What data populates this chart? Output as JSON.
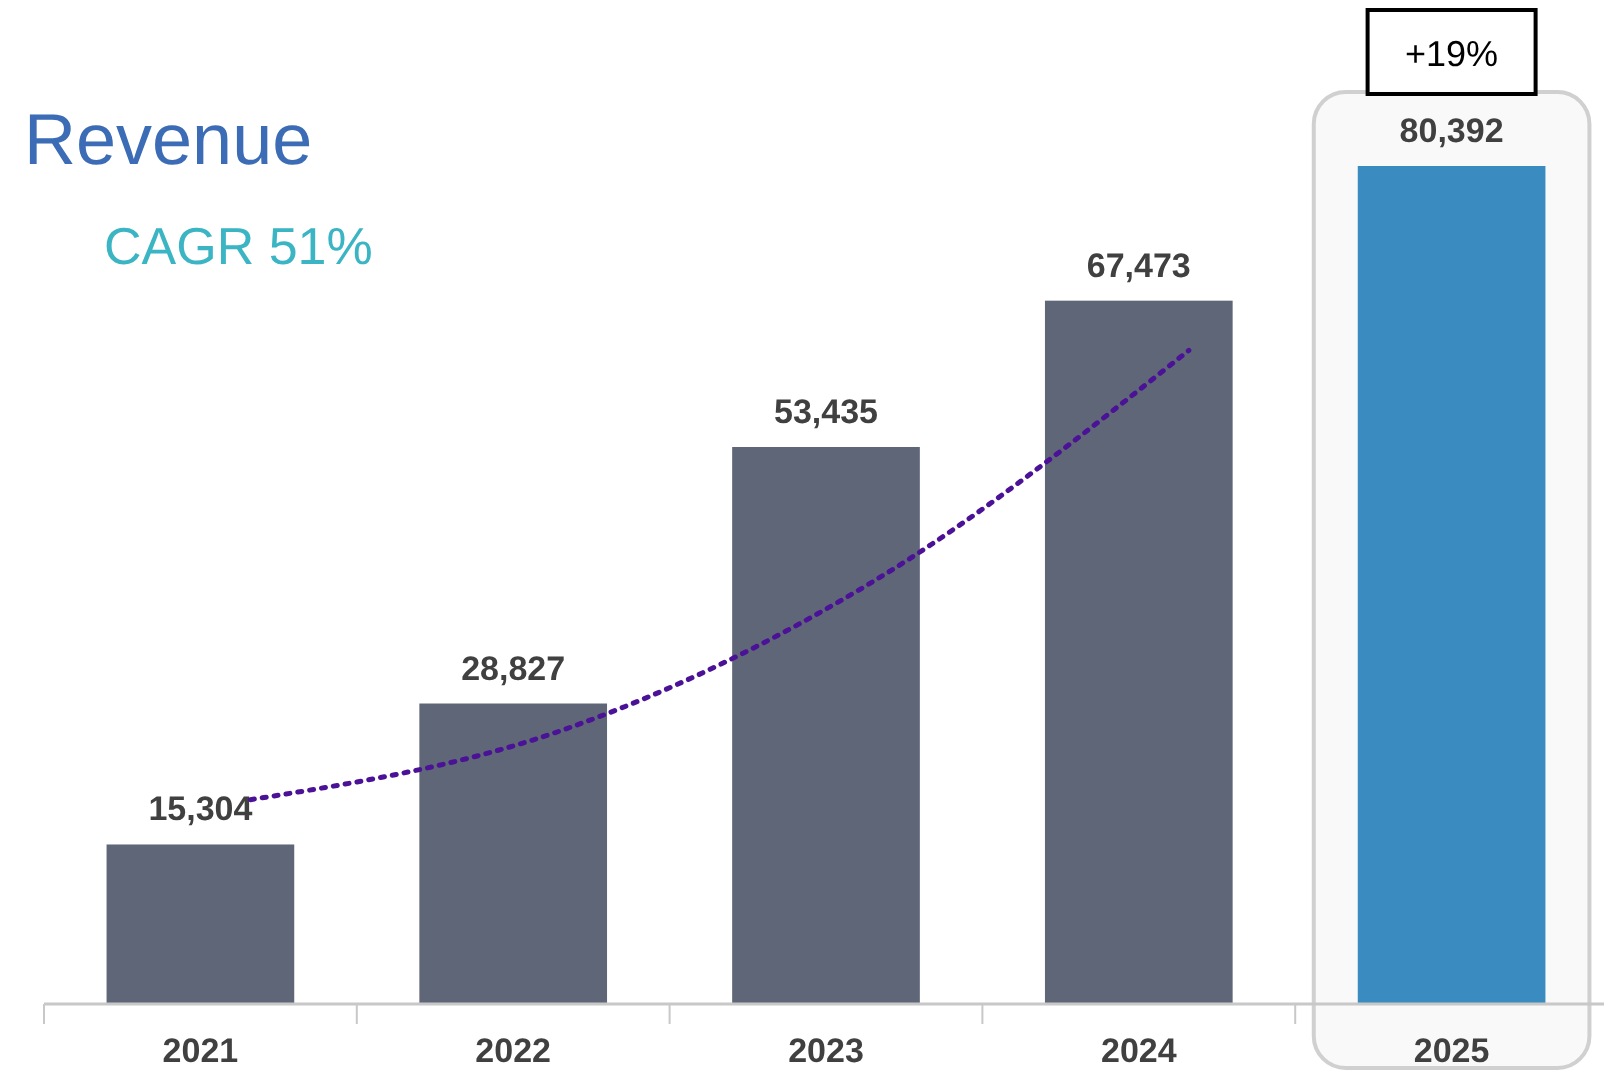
{
  "chart_data": {
    "type": "bar",
    "categories": [
      "2021",
      "2022",
      "2023",
      "2024",
      "2025"
    ],
    "series": [
      {
        "type": "bar",
        "colors": [
          "#5e6678",
          "#5e6678",
          "#5e6678",
          "#5e6678",
          "#3a8cc0"
        ],
        "values": [
          15304,
          28827,
          53435,
          67473,
          80392
        ],
        "value_labels": [
          "15,304",
          "28,827",
          "53,435",
          "67,473",
          "80,392"
        ]
      },
      {
        "type": "line",
        "color": "#4b1196",
        "line_style": "dotted",
        "values": [
          19600,
          26300,
          40700,
          62700,
          null
        ]
      }
    ],
    "tick_labels": "x",
    "bands": [
      {
        "axis": "x",
        "from": "2025",
        "to": "2025",
        "color": "#d0d0d0"
      }
    ],
    "annotations": [
      "Revenue",
      "CAGR 51%",
      "+19%"
    ]
  }
}
